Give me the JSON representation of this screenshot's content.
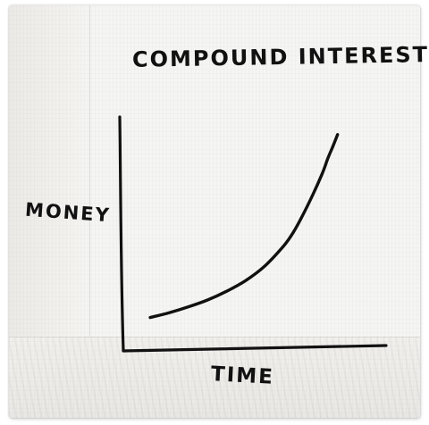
{
  "chart_data": {
    "type": "line",
    "title": "COMPOUND INTEREST",
    "xlabel": "TIME",
    "ylabel": "MONEY",
    "grid": false,
    "legend": "none",
    "xlim": [
      0,
      10
    ],
    "ylim": [
      0,
      10
    ],
    "series": [
      {
        "x": [
          0,
          1,
          2,
          3,
          4,
          5,
          6,
          7,
          7.5,
          8,
          8.5,
          9,
          9.3,
          9.6,
          9.8
        ],
        "y": [
          0.2,
          0.45,
          0.75,
          1.1,
          1.55,
          2.1,
          2.85,
          3.9,
          4.6,
          5.5,
          6.5,
          7.6,
          8.4,
          9.1,
          9.6
        ]
      }
    ]
  },
  "colors": {
    "ink": "#111111",
    "napkin": "#f5f5f3",
    "background": "#ffffff"
  }
}
